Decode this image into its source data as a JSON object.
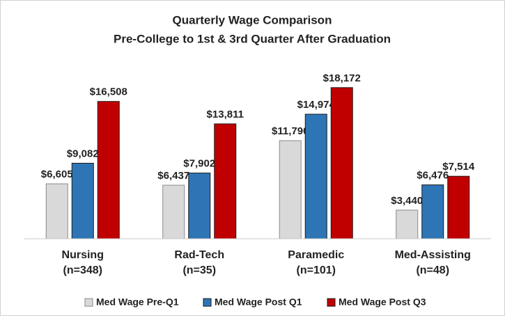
{
  "chart_data": {
    "type": "bar",
    "title": "Quarterly Wage Comparison",
    "subtitle": "Pre-College to 1st & 3rd Quarter After Graduation",
    "categories": [
      "Nursing\n(n=348)",
      "Rad-Tech\n(n=35)",
      "Paramedic\n(n=101)",
      "Med-Assisting\n(n=48)"
    ],
    "series": [
      {
        "name": "Med Wage Pre-Q1",
        "color": "#d9d9d9",
        "values": [
          6605,
          6437,
          11790,
          3440
        ],
        "value_labels": [
          "$6,605",
          "$6,437",
          "$11,790",
          "$3,440"
        ]
      },
      {
        "name": "Med Wage Post Q1",
        "color": "#2e75b6",
        "values": [
          9082,
          7902,
          14974,
          6476
        ],
        "value_labels": [
          "$9,082",
          "$7,902",
          "$14,974",
          "$6,476"
        ]
      },
      {
        "name": "Med Wage Post Q3",
        "color": "#c00000",
        "values": [
          16508,
          13811,
          18172,
          7514
        ],
        "value_labels": [
          "$16,508",
          "$13,811",
          "$18,172",
          "$7,514"
        ]
      }
    ],
    "ylim": [
      0,
      20000
    ],
    "legend": "bottom"
  }
}
